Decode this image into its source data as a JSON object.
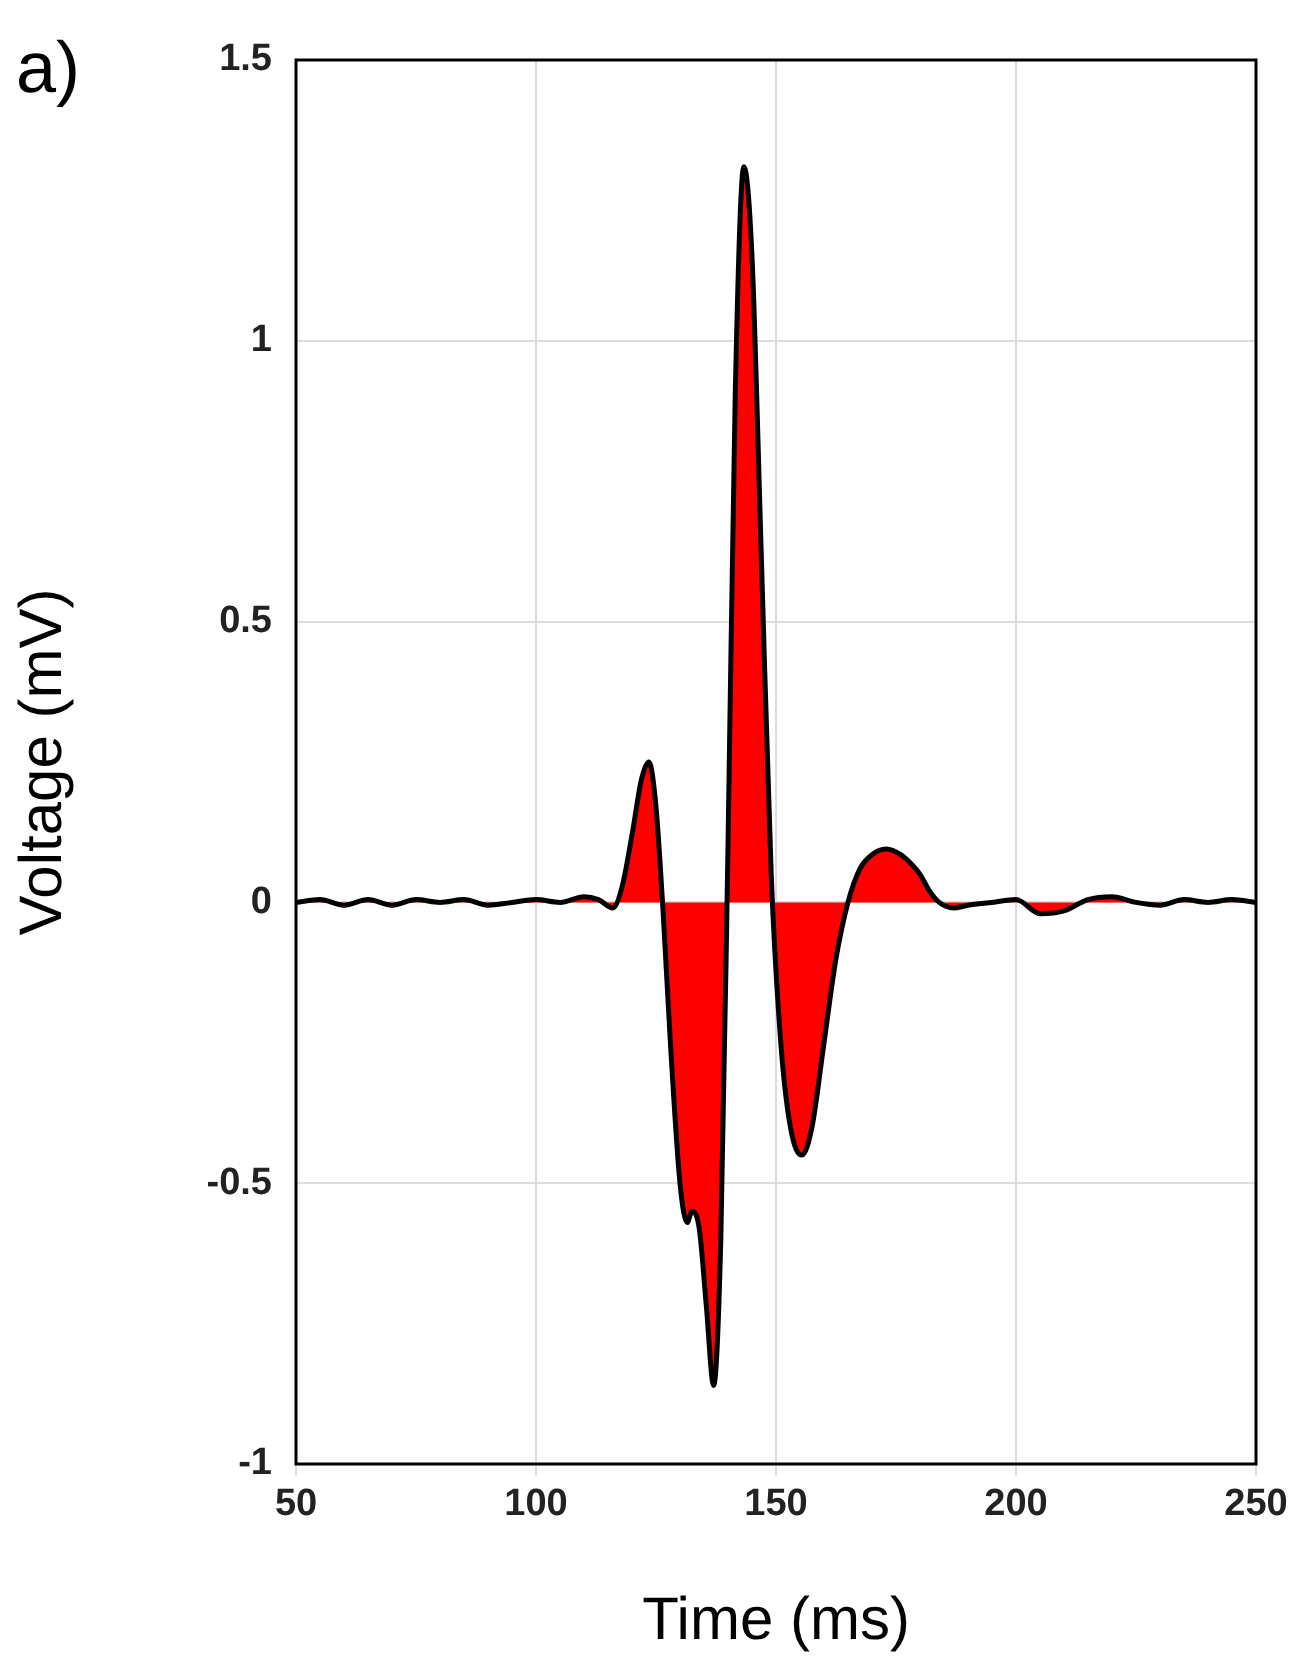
{
  "chart_data": {
    "type": "area",
    "xlabel": "Time (ms)",
    "ylabel": "Voltage (mV)",
    "annotations": [
      "a)"
    ],
    "xlim": [
      50,
      250
    ],
    "xticks": [
      50,
      100,
      150,
      200,
      250
    ],
    "ylim": [
      -1,
      1.5
    ],
    "yticks": [
      -1,
      -0.5,
      0,
      0.5,
      1,
      1.5
    ],
    "grid": true,
    "series": [
      {
        "color": "#ff0000",
        "x": [
          50,
          55,
          60,
          65,
          70,
          75,
          80,
          85,
          90,
          95,
          100,
          105,
          110,
          113,
          116,
          118,
          120,
          122,
          123.5,
          125,
          126.5,
          128,
          130,
          131.5,
          132.5,
          134,
          135.5,
          137,
          138.5,
          140,
          141.5,
          143.3,
          145,
          147,
          149,
          151,
          153,
          155.4,
          157.5,
          160,
          162.5,
          165,
          167.5,
          170,
          173,
          176,
          178,
          180,
          182,
          184,
          187,
          190,
          195,
          200,
          205,
          210,
          215,
          220,
          225,
          230,
          235,
          240,
          245,
          250
        ],
        "values": [
          0,
          0.005,
          -0.005,
          0.005,
          -0.005,
          0.005,
          0,
          0.005,
          -0.005,
          0,
          0.005,
          0,
          0.01,
          0.005,
          -0.01,
          0.03,
          0.12,
          0.22,
          0.25,
          0.17,
          -0.02,
          -0.25,
          -0.5,
          -0.57,
          -0.55,
          -0.58,
          -0.72,
          -0.86,
          -0.6,
          0.1,
          0.9,
          1.31,
          1.15,
          0.6,
          0.05,
          -0.25,
          -0.4,
          -0.45,
          -0.4,
          -0.25,
          -0.1,
          0,
          0.06,
          0.085,
          0.095,
          0.085,
          0.07,
          0.05,
          0.02,
          0,
          -0.01,
          -0.005,
          0,
          0.005,
          -0.02,
          -0.015,
          0.005,
          0.01,
          0,
          -0.005,
          0.005,
          0,
          0.005,
          0
        ]
      }
    ]
  }
}
